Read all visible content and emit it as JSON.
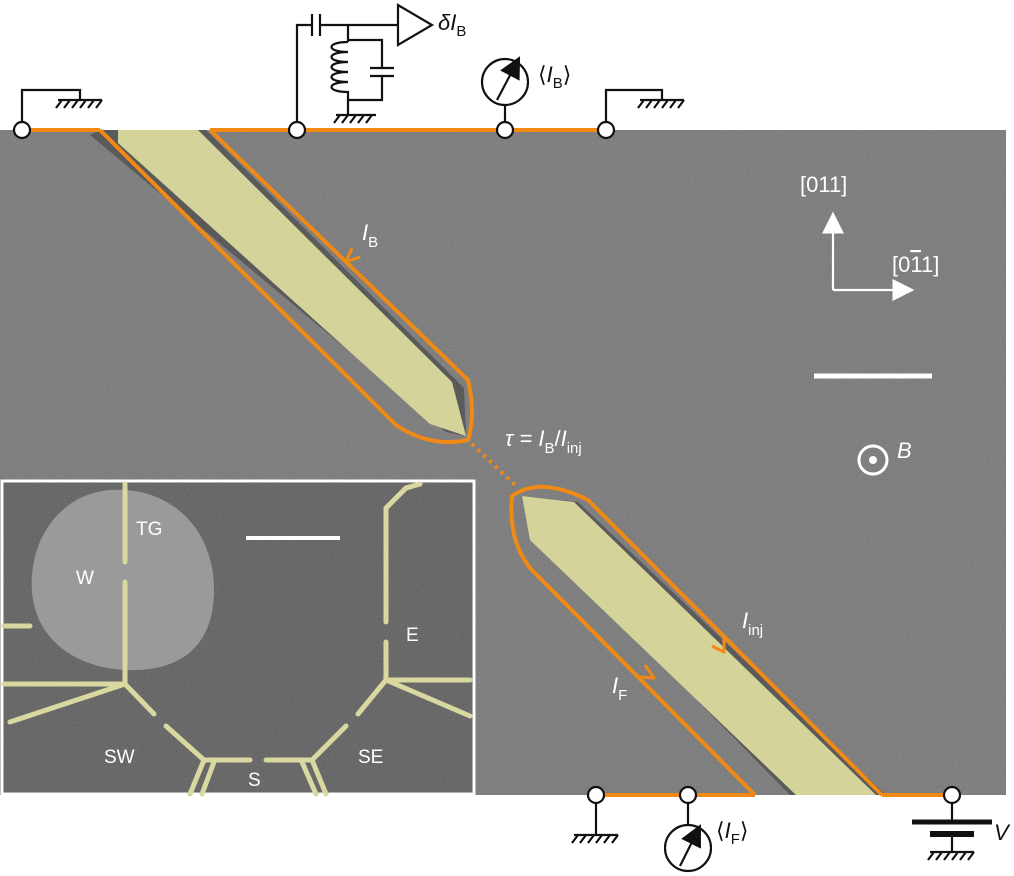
{
  "labels": {
    "delta_ib_prefix": "δ",
    "delta_ib_main": "I",
    "delta_ib_sub": "B",
    "avg_ib_open": "⟨",
    "avg_ib_main": "I",
    "avg_ib_sub": "B",
    "avg_ib_close": "⟩",
    "ib_main": "I",
    "ib_sub": "B",
    "tau_eq": "τ = ",
    "tau_ib_main": "I",
    "tau_ib_sub": "B",
    "tau_slash": "/",
    "tau_inj_main": "I",
    "tau_inj_sub": "inj",
    "b_field": "B",
    "iinj_main": "I",
    "iinj_sub": "inj",
    "if_main": "I",
    "if_sub": "F",
    "avg_if_open": "⟨",
    "avg_if_main": "I",
    "avg_if_sub": "F",
    "avg_if_close": "⟩",
    "voltage": "V",
    "axis_011": "[011]",
    "axis_0m11_pre": "[0",
    "axis_0m11_bar": "1",
    "axis_0m11_post": "1]"
  },
  "inset": {
    "tg": "TG",
    "w": "W",
    "e": "E",
    "sw": "SW",
    "s": "S",
    "se": "SE"
  },
  "colors": {
    "sample": "#767676",
    "inset_bg": "#5c5c5c",
    "gate_fill": "#d8d8a0",
    "edge_channel": "#f08a14",
    "wiring": "#111111"
  }
}
